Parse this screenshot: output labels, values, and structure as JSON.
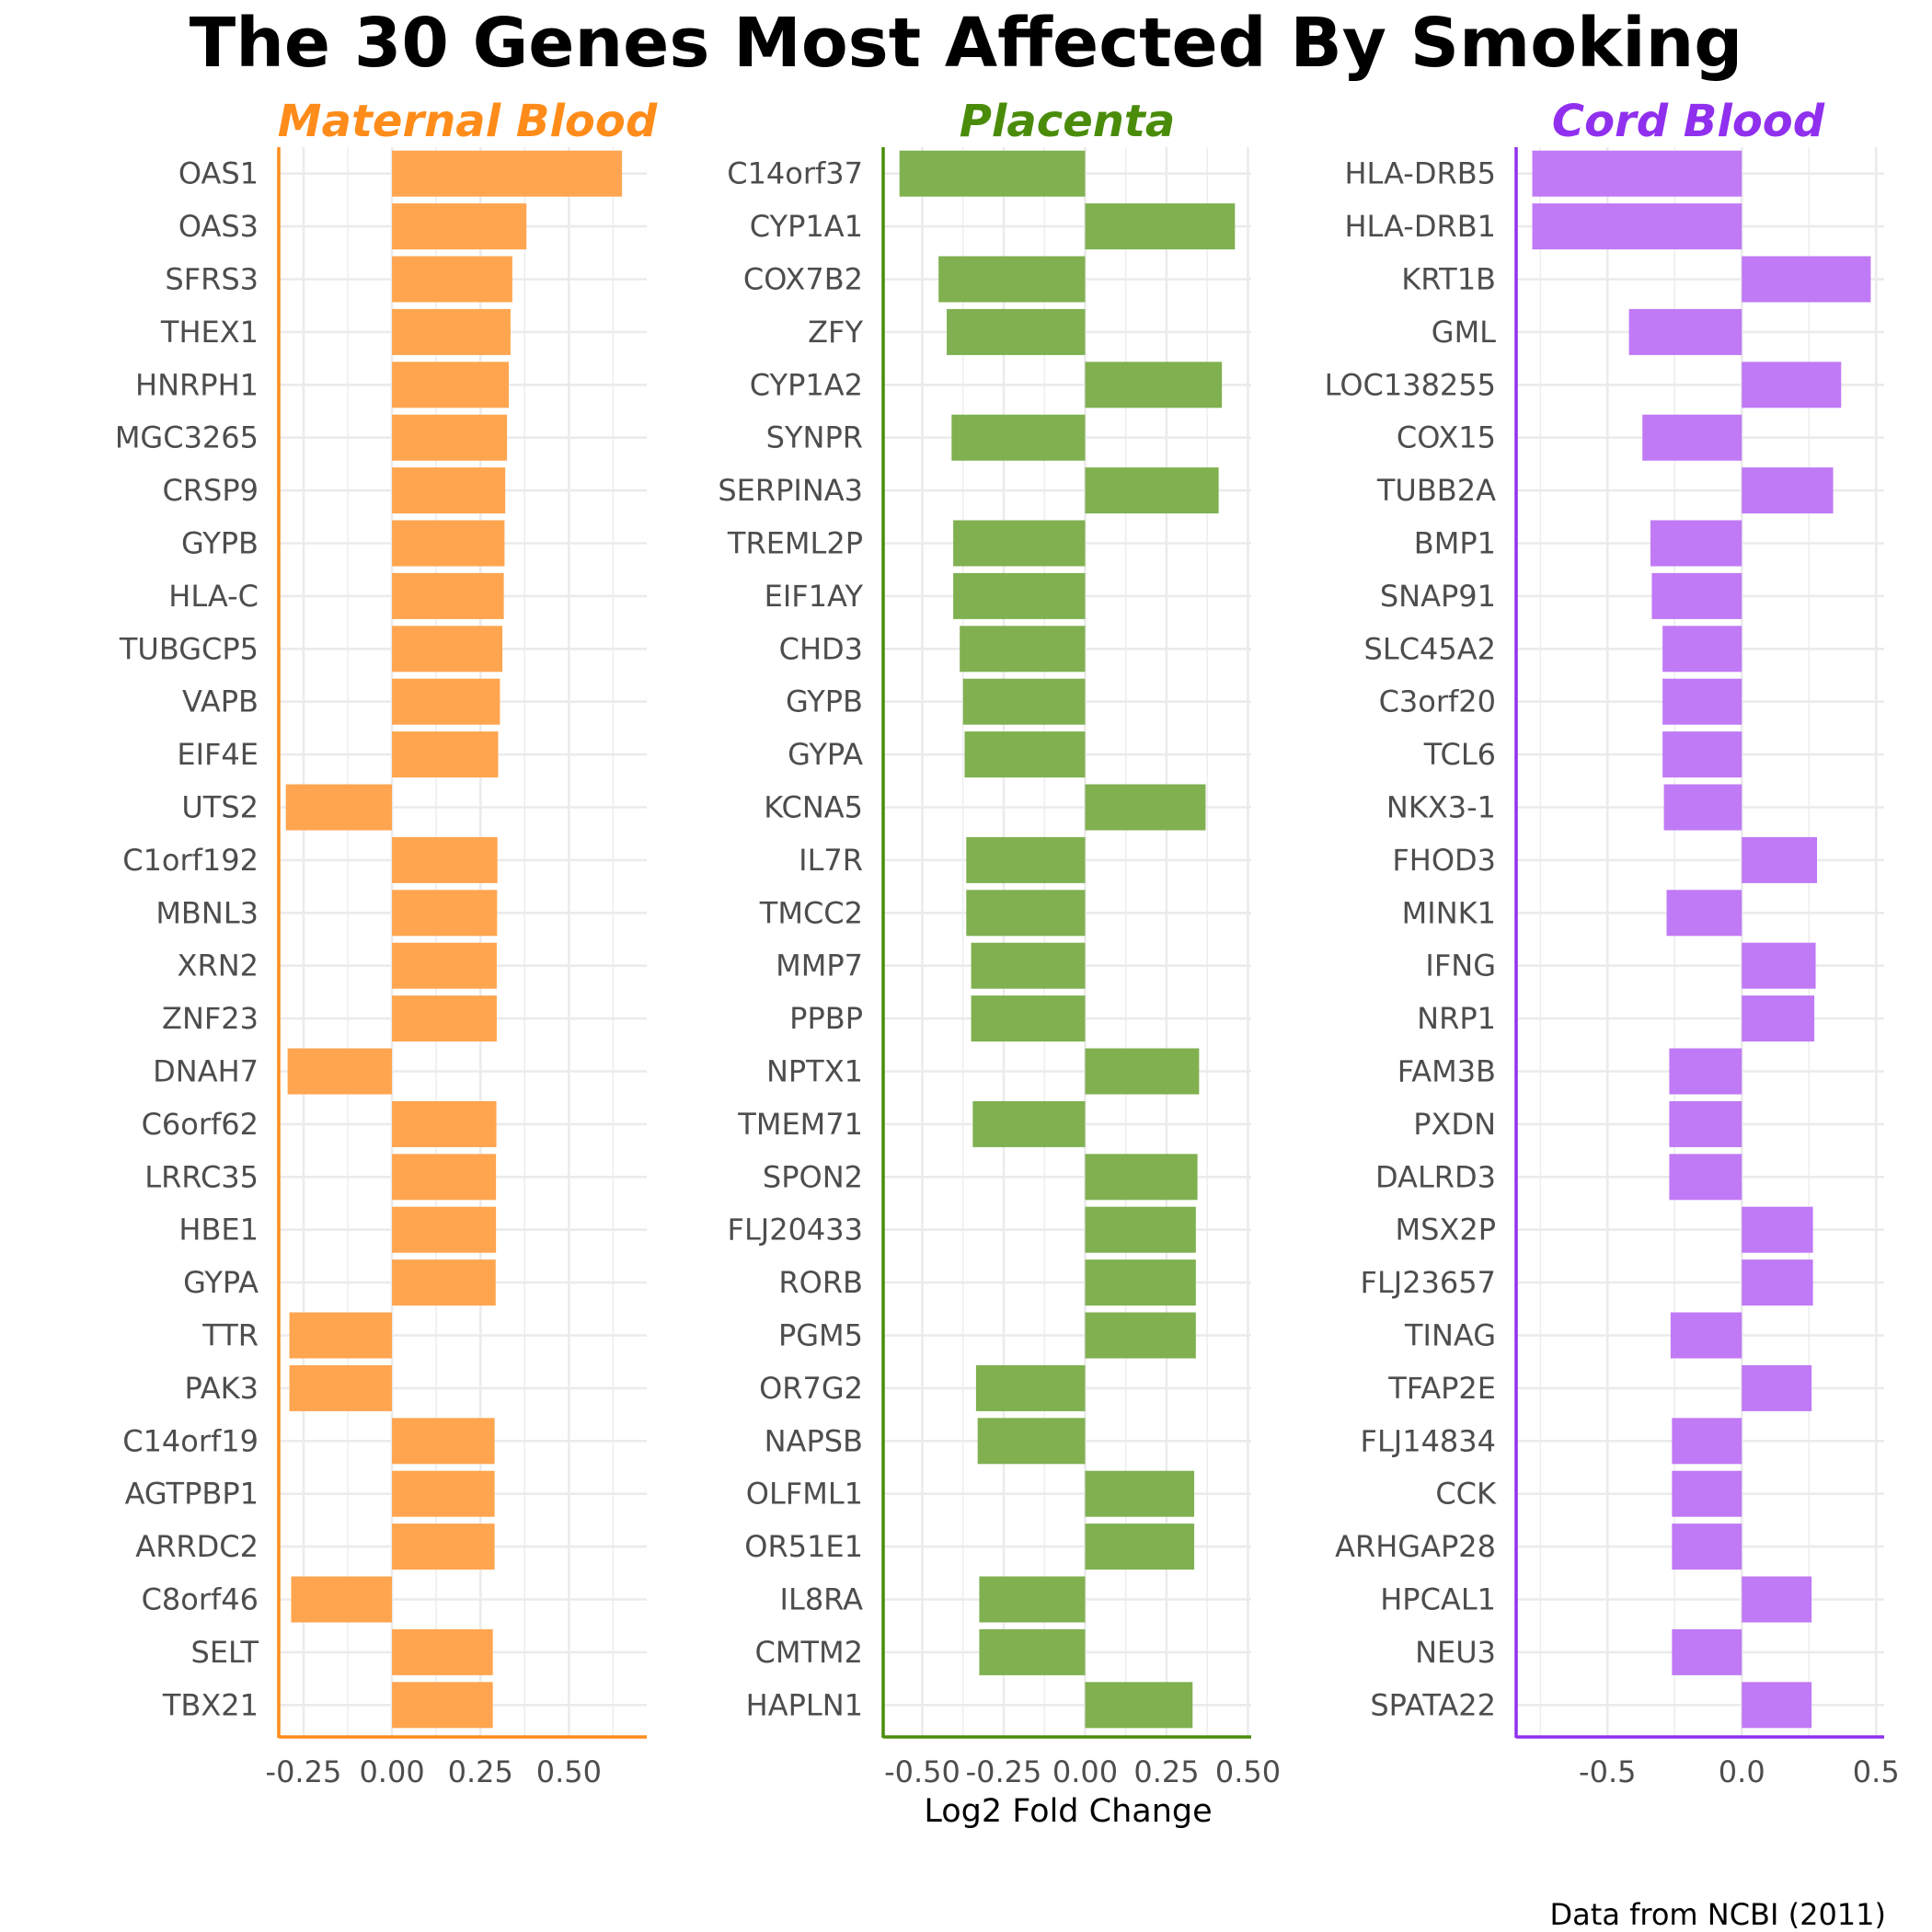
{
  "title": "The 30 Genes Most Affected By Smoking",
  "xlabel": "Log2 Fold Change",
  "caption": "Data from NCBI (2011)",
  "chart_data": [
    {
      "type": "bar",
      "orientation": "horizontal",
      "title": "Maternal Blood",
      "color": "#ff8c1a",
      "bar_color": "#ffa550",
      "xlim": [
        -0.32,
        0.72
      ],
      "xticks": [
        -0.25,
        0.0,
        0.25,
        0.5
      ],
      "xtick_labels": [
        "-0.25",
        "0.00",
        "0.25",
        "0.50"
      ],
      "categories": [
        "OAS1",
        "OAS3",
        "SFRS3",
        "THEX1",
        "HNRPH1",
        "MGC3265",
        "CRSP9",
        "GYPB",
        "HLA-C",
        "TUBGCP5",
        "VAPB",
        "EIF4E",
        "UTS2",
        "C1orf192",
        "MBNL3",
        "XRN2",
        "ZNF23",
        "DNAH7",
        "C6orf62",
        "LRRC35",
        "HBE1",
        "GYPA",
        "TTR",
        "PAK3",
        "C14orf19",
        "AGTPBP1",
        "ARRDC2",
        "C8orf46",
        "SELT",
        "TBX21"
      ],
      "values": [
        0.65,
        0.38,
        0.34,
        0.335,
        0.33,
        0.325,
        0.32,
        0.318,
        0.316,
        0.312,
        0.305,
        0.3,
        -0.3,
        0.298,
        0.297,
        0.296,
        0.296,
        -0.295,
        0.295,
        0.294,
        0.294,
        0.293,
        -0.29,
        -0.29,
        0.29,
        0.29,
        0.29,
        -0.285,
        0.285,
        0.285
      ],
      "grid": true
    },
    {
      "type": "bar",
      "orientation": "horizontal",
      "title": "Placenta",
      "color": "#4a8c0a",
      "bar_color": "#80b050",
      "xlim": [
        -0.62,
        0.51
      ],
      "xticks": [
        -0.5,
        -0.25,
        0.0,
        0.25,
        0.5
      ],
      "xtick_labels": [
        "-0.50",
        "-0.25",
        "0.00",
        "0.25",
        "0.50"
      ],
      "categories": [
        "C14orf37",
        "CYP1A1",
        "COX7B2",
        "ZFY",
        "CYP1A2",
        "SYNPR",
        "SERPINA3",
        "TREML2P",
        "EIF1AY",
        "CHD3",
        "GYPB",
        "GYPA",
        "KCNA5",
        "IL7R",
        "TMCC2",
        "MMP7",
        "PPBP",
        "NPTX1",
        "TMEM71",
        "SPON2",
        "FLJ20433",
        "RORB",
        "PGM5",
        "OR7G2",
        "NAPSB",
        "OLFML1",
        "OR51E1",
        "IL8RA",
        "CMTM2",
        "HAPLN1"
      ],
      "values": [
        -0.57,
        0.46,
        -0.45,
        -0.425,
        0.42,
        -0.41,
        0.41,
        -0.405,
        -0.405,
        -0.385,
        -0.375,
        -0.37,
        0.37,
        -0.365,
        -0.365,
        -0.35,
        -0.35,
        0.35,
        -0.345,
        0.345,
        0.34,
        0.34,
        0.34,
        -0.335,
        -0.33,
        0.335,
        0.335,
        -0.325,
        -0.325,
        0.33
      ],
      "grid": true
    },
    {
      "type": "bar",
      "orientation": "horizontal",
      "title": "Cord Blood",
      "color": "#9030ee",
      "bar_color": "#c07af5",
      "xlim": [
        -0.84,
        0.53
      ],
      "xticks": [
        -0.5,
        0.0,
        0.5
      ],
      "xtick_labels": [
        "-0.5",
        "0.0",
        "0.5"
      ],
      "categories": [
        "HLA-DRB5",
        "HLA-DRB1",
        "KRT1B",
        "GML",
        "LOC138255",
        "COX15",
        "TUBB2A",
        "BMP1",
        "SNAP91",
        "SLC45A2",
        "C3orf20",
        "TCL6",
        "NKX3-1",
        "FHOD3",
        "MINK1",
        "IFNG",
        "NRP1",
        "FAM3B",
        "PXDN",
        "DALRD3",
        "MSX2P",
        "FLJ23657",
        "TINAG",
        "TFAP2E",
        "FLJ14834",
        "CCK",
        "ARHGAP28",
        "HPCAL1",
        "NEU3",
        "SPATA22"
      ],
      "values": [
        -0.78,
        -0.78,
        0.48,
        -0.42,
        0.37,
        -0.37,
        0.34,
        -0.34,
        -0.335,
        -0.295,
        -0.295,
        -0.295,
        -0.29,
        0.28,
        -0.28,
        0.275,
        0.27,
        -0.27,
        -0.27,
        -0.27,
        0.265,
        0.265,
        -0.265,
        0.26,
        -0.26,
        -0.26,
        -0.26,
        0.26,
        -0.26,
        0.26
      ],
      "grid": true
    }
  ]
}
